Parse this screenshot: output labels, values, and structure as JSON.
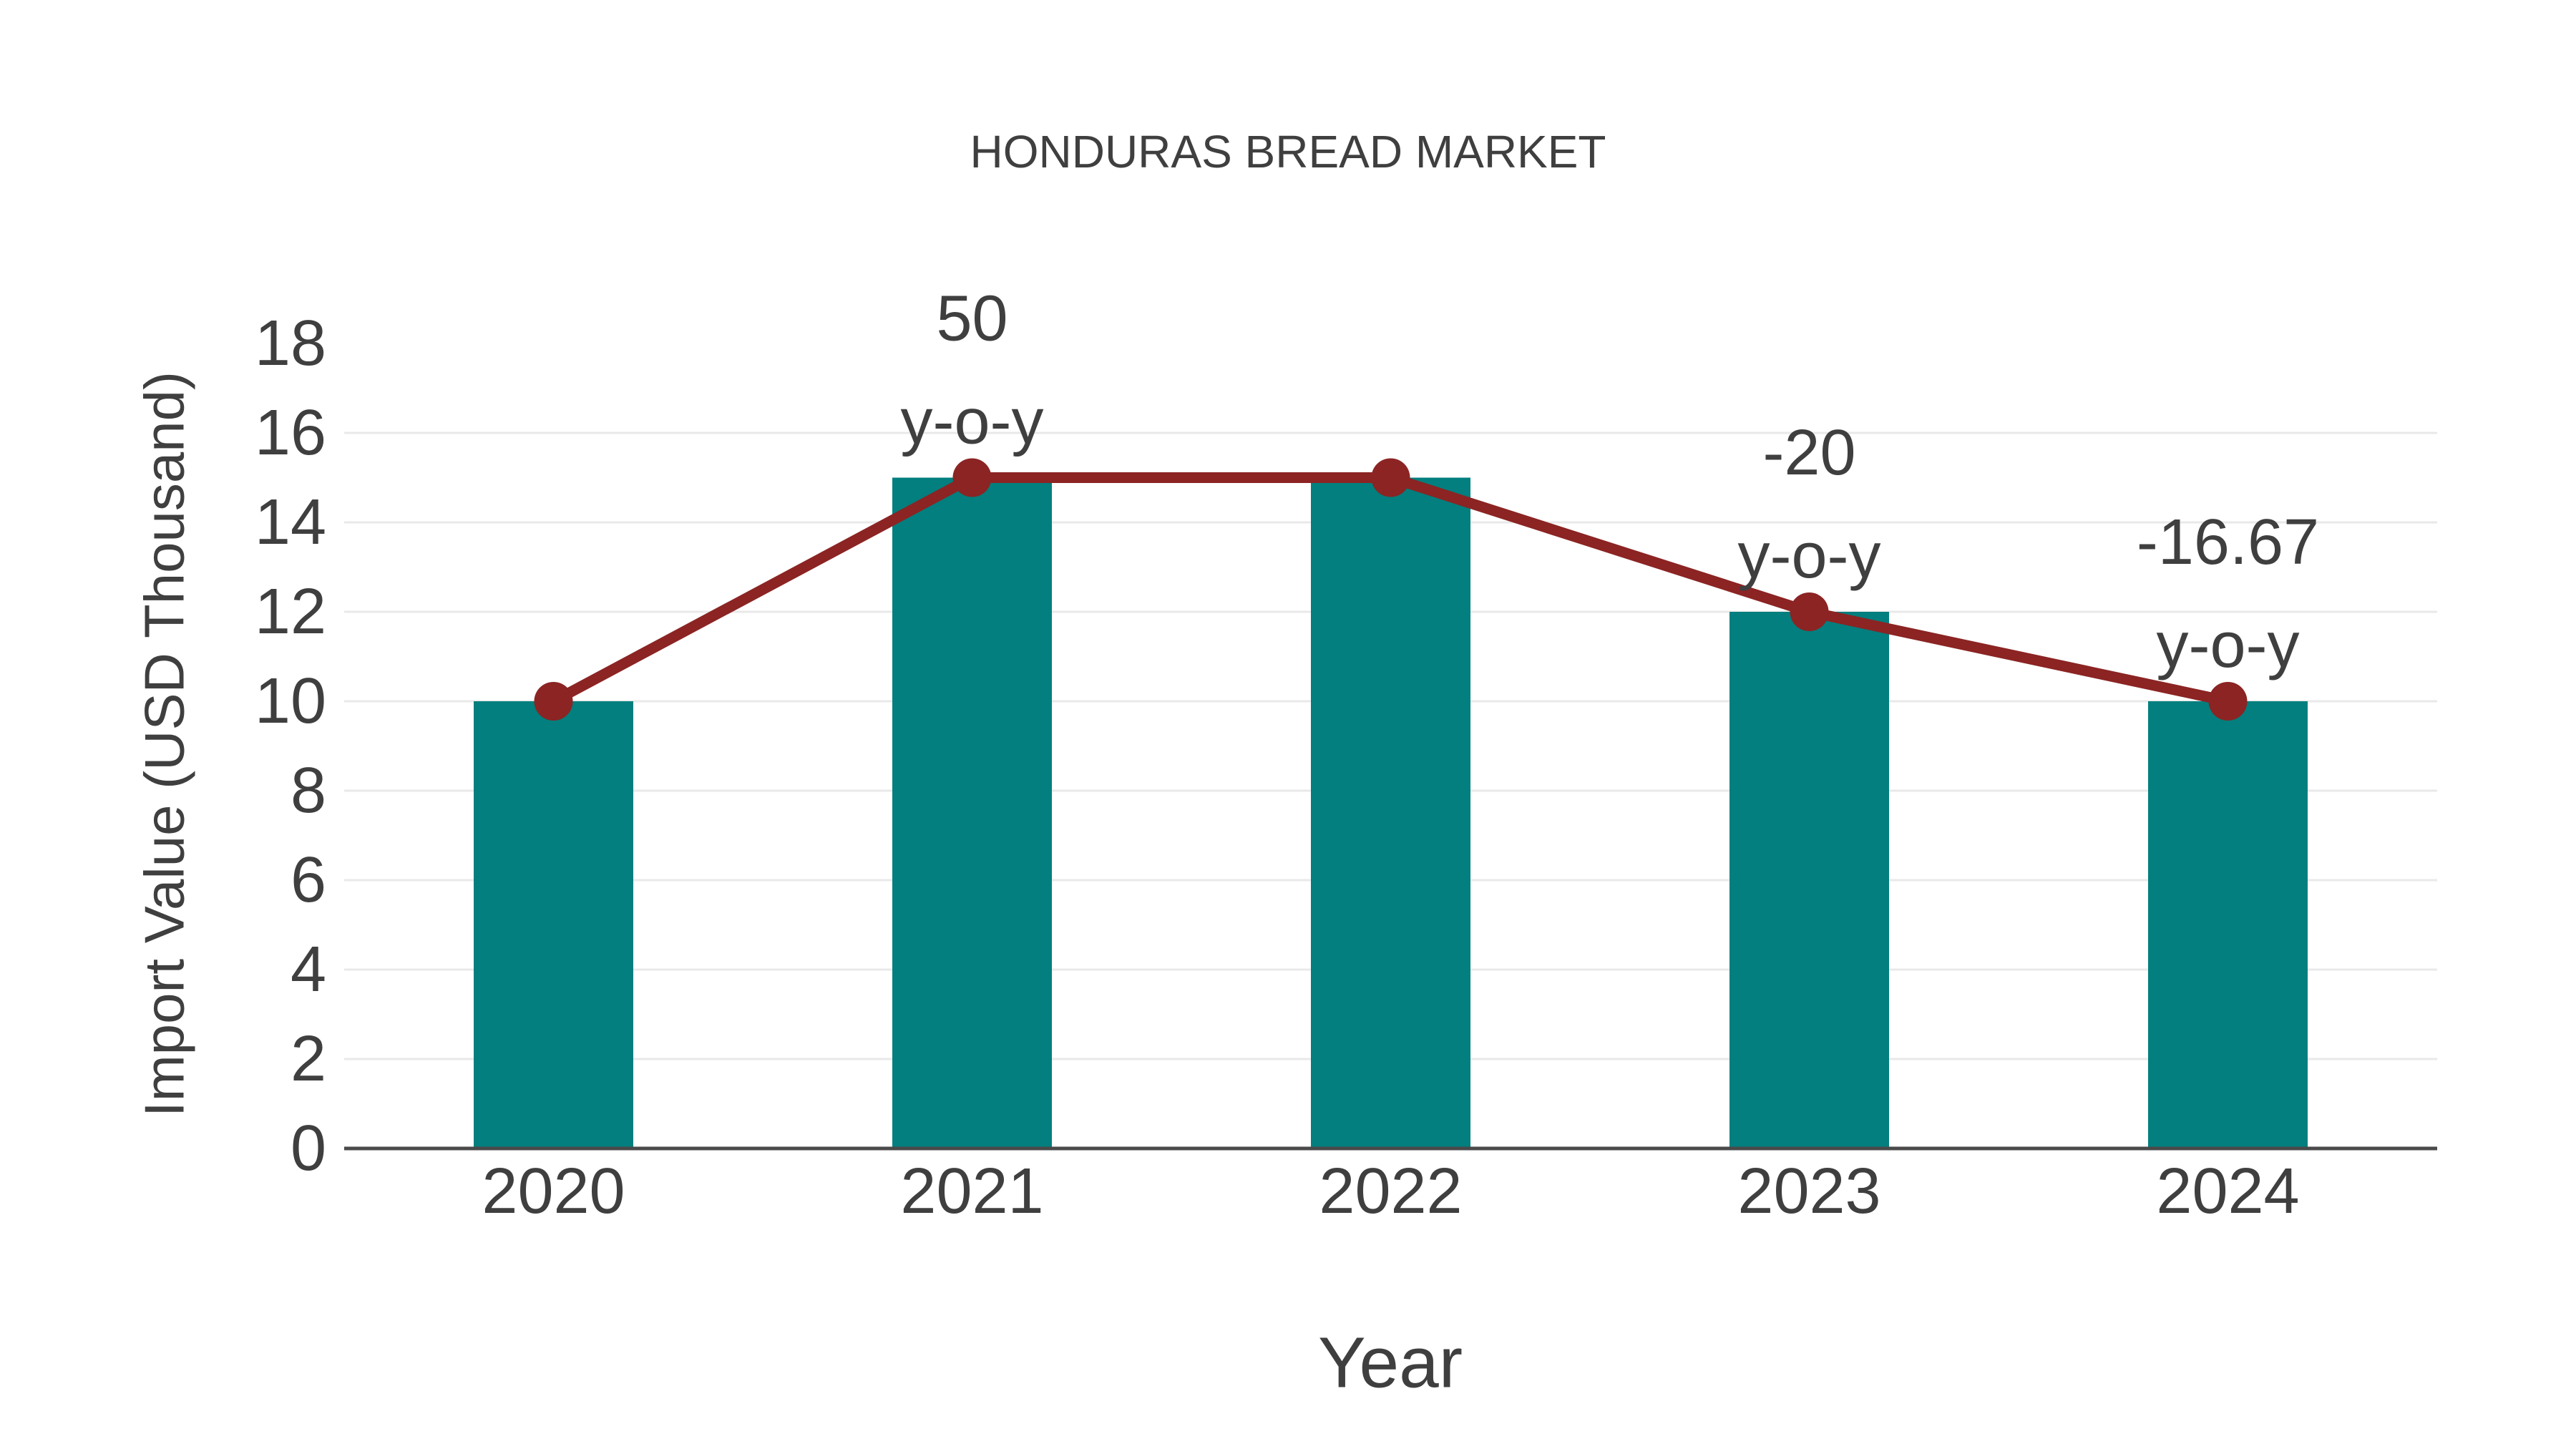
{
  "chart_data": {
    "type": "bar",
    "title": "HONDURAS BREAD MARKET",
    "xlabel": "Year",
    "ylabel": "Import Value (USD Thousand)",
    "categories": [
      "2020",
      "2021",
      "2022",
      "2023",
      "2024"
    ],
    "series": [
      {
        "name": "import-value-bars",
        "type": "bar",
        "color": "#027F7E",
        "values": [
          10,
          15,
          15,
          12,
          10
        ]
      },
      {
        "name": "import-value-trend-line",
        "type": "line",
        "color": "#8B2423",
        "values": [
          10,
          15,
          15,
          12,
          10
        ]
      }
    ],
    "annotations": [
      {
        "category": "2021",
        "lines": [
          "50",
          "y-o-y"
        ]
      },
      {
        "category": "2023",
        "lines": [
          "-20",
          "y-o-y"
        ]
      },
      {
        "category": "2024",
        "lines": [
          "-16.67",
          "y-o-y"
        ]
      }
    ],
    "y_ticks": [
      0,
      2,
      4,
      6,
      8,
      10,
      12,
      14,
      16,
      18
    ],
    "ylim": [
      0,
      18
    ],
    "grid": "horizontal",
    "legend_position": "none",
    "colors": {
      "bar": "#027F7E",
      "line": "#8B2423",
      "text": "#3f3f3f",
      "grid": "#e9e9e9",
      "axis": "#4a4a4a",
      "background": "#ffffff"
    }
  }
}
